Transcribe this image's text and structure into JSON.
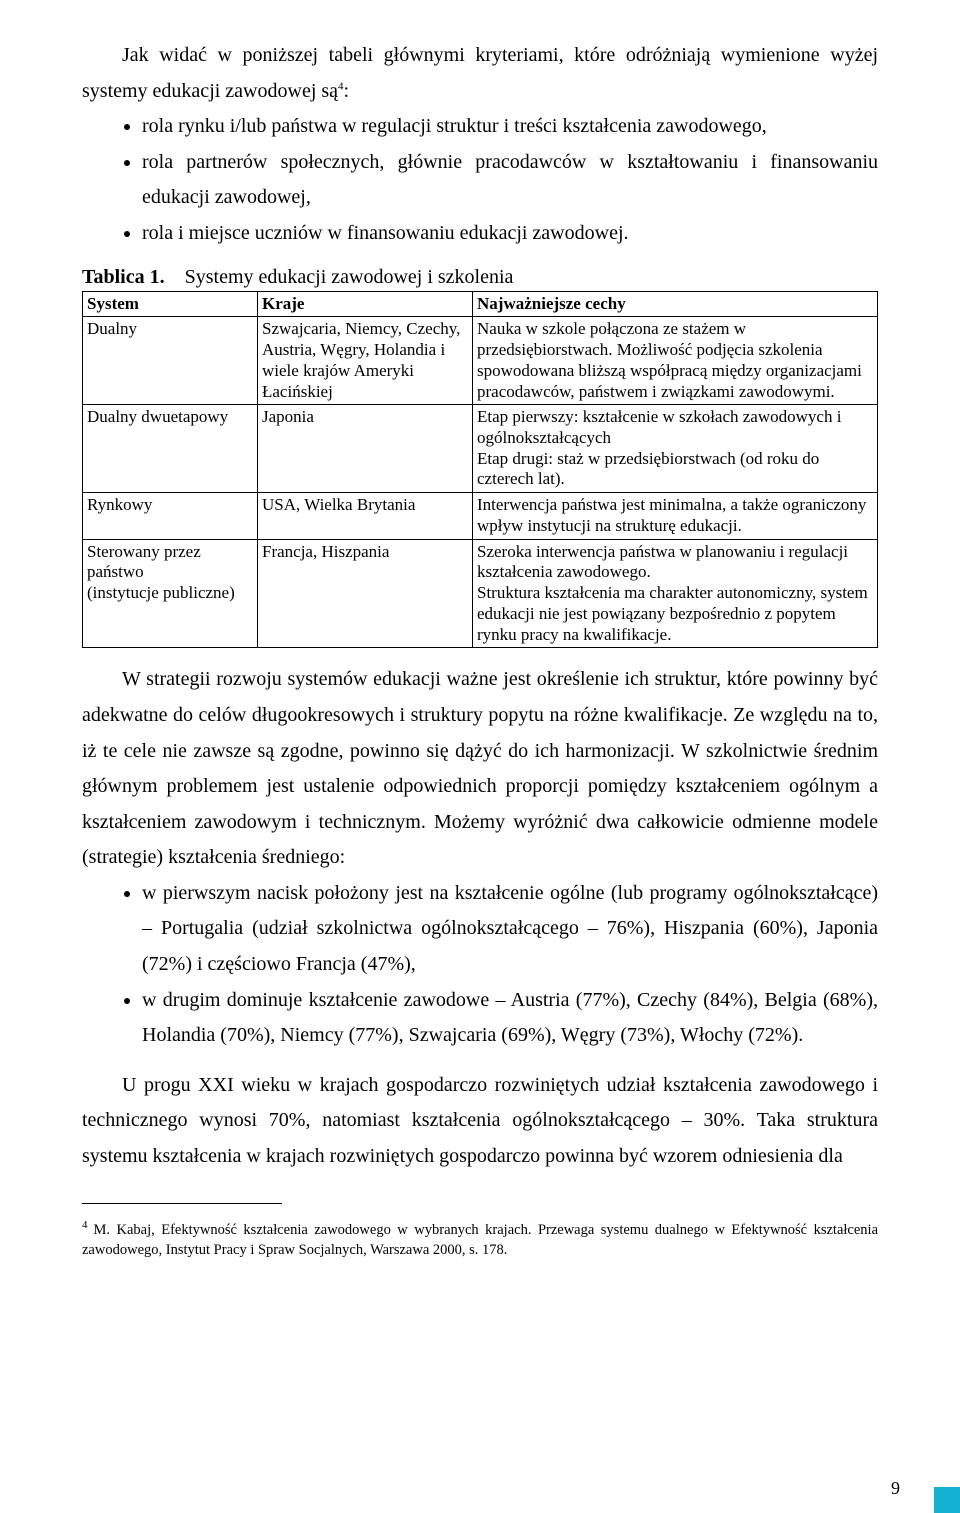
{
  "intro": {
    "p1": "Jak widać w poniższej tabeli głównymi kryteriami, które odróżniają wymienione wyżej systemy edukacji zawodowej są",
    "footref": "4",
    "p1_after": ":",
    "bullets": [
      "rola rynku i/lub państwa w regulacji struktur i treści kształcenia zawodowego,",
      "rola partnerów społecznych, głównie pracodawców w kształtowaniu i finansowaniu edukacji zawodowej,",
      "rola i miejsce uczniów w finansowaniu edukacji zawodowej."
    ]
  },
  "table": {
    "caption_prefix": "Tablica 1.",
    "caption_text": "Systemy edukacji zawodowej i szkolenia",
    "headers": [
      "System",
      "Kraje",
      "Najważniejsze cechy"
    ],
    "rows": [
      {
        "system": "Dualny",
        "countries": "Szwajcaria, Niemcy, Czechy, Austria, Węgry, Holandia i wiele krajów Ameryki Łacińskiej",
        "features": "Nauka w szkole połączona ze stażem w przedsiębiorstwach. Możliwość podjęcia szkolenia spowodowana bliższą współpracą między organizacjami pracodawców, państwem i związkami zawodowymi."
      },
      {
        "system": "Dualny dwuetapowy",
        "countries": "Japonia",
        "features": "Etap pierwszy: kształcenie w szkołach zawodowych i ogólnokształcących\nEtap drugi: staż w przedsiębiorstwach (od roku do czterech lat)."
      },
      {
        "system": "Rynkowy",
        "countries": "USA, Wielka Brytania",
        "features": "Interwencja państwa jest minimalna, a także ograniczony wpływ instytucji na strukturę edukacji."
      },
      {
        "system": "Sterowany przez państwo\n(instytucje publiczne)",
        "countries": "Francja, Hiszpania",
        "features": "Szeroka interwencja państwa w planowaniu i regulacji kształcenia zawodowego.\nStruktura kształcenia ma charakter autonomiczny, system edukacji nie jest powiązany bezpośrednio z popytem rynku pracy na kwalifikacje."
      }
    ]
  },
  "para2": "W strategii rozwoju systemów edukacji ważne jest określenie ich struktur, które powinny być adekwatne do celów długookresowych i struktury popytu na różne kwalifikacje. Ze względu na to, iż te cele nie zawsze są zgodne, powinno się dążyć do ich harmonizacji. W szkolnictwie średnim głównym problemem jest ustalenie odpowiednich proporcji pomiędzy kształceniem ogólnym a kształceniem zawodowym i technicznym. Możemy wyróżnić dwa całkowicie odmienne modele (strategie) kształcenia średniego:",
  "bullets2": [
    "w pierwszym nacisk położony jest na kształcenie ogólne (lub programy ogólnokształcące) – Portugalia (udział szkolnictwa ogólnokształcącego – 76%), Hiszpania (60%), Japonia (72%) i częściowo Francja (47%),",
    "w drugim dominuje kształcenie zawodowe – Austria (77%), Czechy (84%), Belgia (68%), Holandia (70%), Niemcy (77%), Szwajcaria (69%), Węgry (73%), Włochy (72%)."
  ],
  "para3": "U progu XXI wieku w krajach gospodarczo rozwiniętych udział kształcenia zawodowego i technicznego wynosi 70%, natomiast kształcenia ogólnokształcącego – 30%. Taka struktura systemu kształcenia w krajach rozwiniętych gospodarczo powinna być wzorem odniesienia dla",
  "footnote": {
    "num": "4",
    "text": "M. Kabaj, Efektywność kształcenia zawodowego w wybranych krajach. Przewaga systemu dualnego w Efektywność kształcenia zawodowego, Instytut Pracy i Spraw Socjalnych, Warszawa 2000, s. 178."
  },
  "page_number": "9",
  "accent_color": "#15b1d1"
}
